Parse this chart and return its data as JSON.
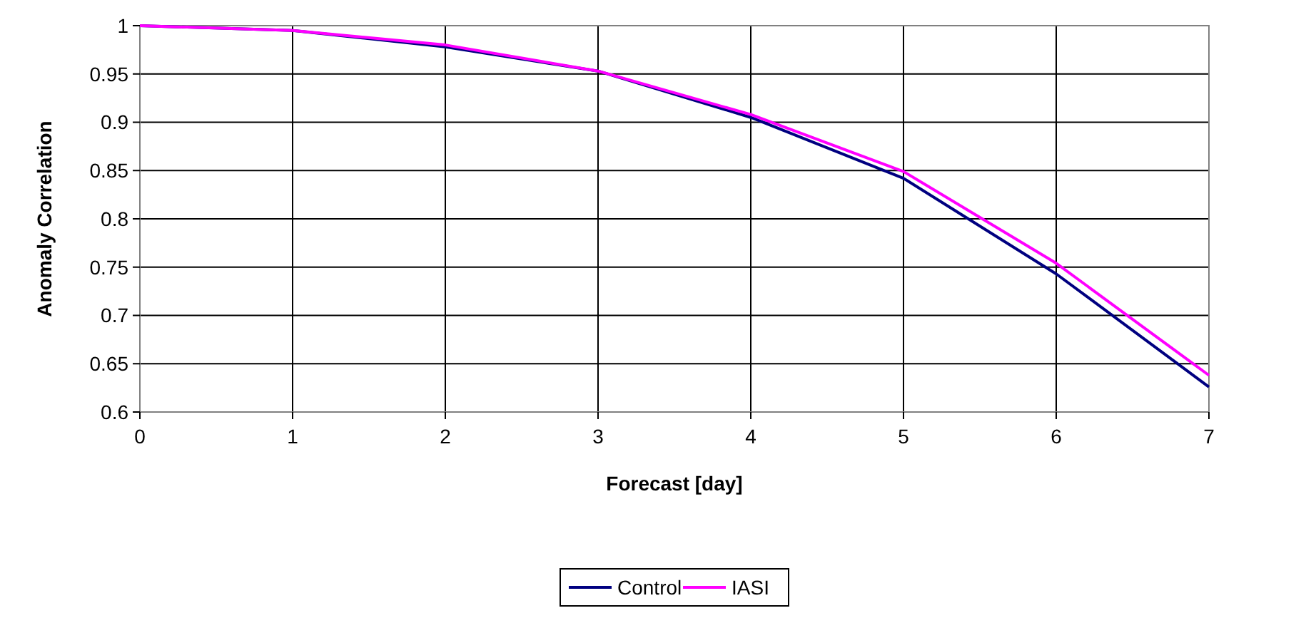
{
  "chart_data": {
    "type": "line",
    "xlabel": "Forecast [day]",
    "ylabel": "Anomaly Correlation",
    "x": [
      0,
      1,
      2,
      3,
      4,
      5,
      6,
      7
    ],
    "series": [
      {
        "name": "Control",
        "color": "#000080",
        "values": [
          1,
          0.995,
          0.978,
          0.953,
          0.905,
          0.842,
          0.743,
          0.626
        ]
      },
      {
        "name": "IASI",
        "color": "#ff00ff",
        "values": [
          1,
          0.995,
          0.98,
          0.953,
          0.908,
          0.849,
          0.754,
          0.638
        ]
      }
    ],
    "xlim": [
      0,
      7
    ],
    "xticks": [
      0,
      1,
      2,
      3,
      4,
      5,
      6,
      7
    ],
    "ylim": [
      0.6,
      1
    ],
    "yticks": [
      0.6,
      0.65,
      0.7,
      0.75,
      0.8,
      0.85,
      0.9,
      0.95,
      1
    ],
    "grid": true,
    "legend": "bottom",
    "marker": "none",
    "line_style": "solid"
  }
}
